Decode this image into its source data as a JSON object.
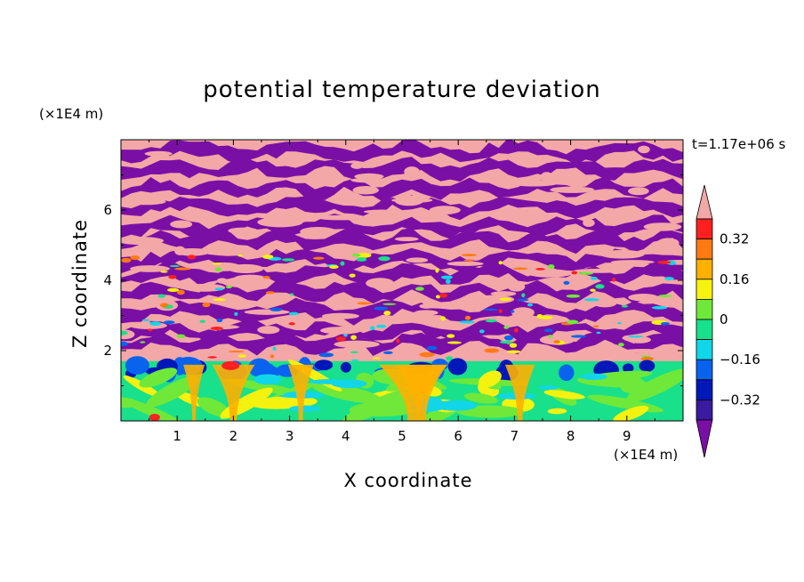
{
  "chart_data": {
    "type": "heatmap",
    "title": "potential temperature deviation",
    "xlabel": "X coordinate",
    "ylabel": "Z coordinate",
    "x_unit": "(×1E4 m)",
    "y_unit": "(×1E4 m)",
    "time_label": "t=1.17e+06 s",
    "xlim": [
      0,
      10
    ],
    "ylim": [
      0,
      8
    ],
    "x_ticks": [
      "1",
      "2",
      "3",
      "4",
      "5",
      "6",
      "7",
      "8",
      "9"
    ],
    "y_ticks": [
      "2",
      "4",
      "6"
    ],
    "colorbar": {
      "tick_labels": [
        "0.32",
        "0.16",
        "0",
        "−0.16",
        "−0.32"
      ],
      "levels": [
        -0.4,
        -0.32,
        -0.24,
        -0.16,
        -0.08,
        0,
        0.08,
        0.16,
        0.24,
        0.32,
        0.4
      ],
      "colors": [
        "#7a0fa6",
        "#3a1a9e",
        "#0018b8",
        "#0a63ef",
        "#10d6e8",
        "#19e08a",
        "#6fe83a",
        "#f5f20f",
        "#ffb000",
        "#ff7a10",
        "#ff2020",
        "#f3a7a7"
      ]
    },
    "structure_note_levels": {
      "lower_boundary_layer_top": 1.7,
      "upper_layer_top": 8
    }
  }
}
